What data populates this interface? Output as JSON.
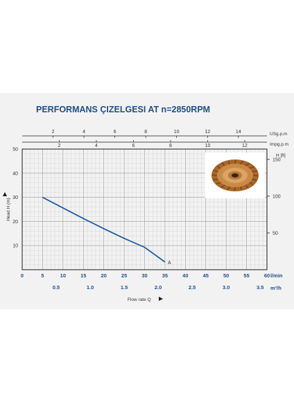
{
  "chart_data": {
    "type": "line",
    "title": "PERFORMANS ÇIZELGESI  AT n=2850RPM",
    "series": [
      {
        "name": "A",
        "x": [
          5,
          10,
          15,
          20,
          25,
          30,
          35
        ],
        "y": [
          30,
          25.6,
          21.2,
          17.0,
          13.0,
          9.3,
          3.2
        ]
      }
    ],
    "x_lpm": {
      "label": "l/min",
      "ticks": [
        0,
        5,
        10,
        15,
        20,
        25,
        30,
        35,
        40,
        45,
        50,
        55,
        60
      ],
      "range": [
        0,
        60
      ]
    },
    "x_m3h": {
      "label": "m³/h",
      "ticks": [
        "0.5",
        "1.0",
        "1.5",
        "2.0",
        "2.5",
        "3.0",
        "3.5"
      ]
    },
    "x_usgpm": {
      "label": "USg.p.m",
      "ticks": [
        "2",
        "4",
        "6",
        "8",
        "10",
        "12",
        "14"
      ]
    },
    "x_impgpm": {
      "label": "Impg.p.m",
      "ticks": [
        "2",
        "4",
        "6",
        "8",
        "10",
        "12"
      ]
    },
    "y_m": {
      "label": "Head H (m)",
      "ticks": [
        10,
        20,
        30,
        40,
        50
      ],
      "range": [
        0,
        50
      ]
    },
    "y_ft": {
      "label": "H [ft]",
      "ticks": [
        50,
        100,
        150
      ]
    },
    "xlabel": "Flow rate Q",
    "grid": true
  },
  "colors": {
    "title": "#1f4e89",
    "curve": "#1f5fa0",
    "grid": "#bbbbbb",
    "axis": "#1a1a1a"
  },
  "icons": {
    "impeller": "impeller-image",
    "arrow_up": "arrow-up-icon",
    "arrow_right": "arrow-right-icon"
  }
}
